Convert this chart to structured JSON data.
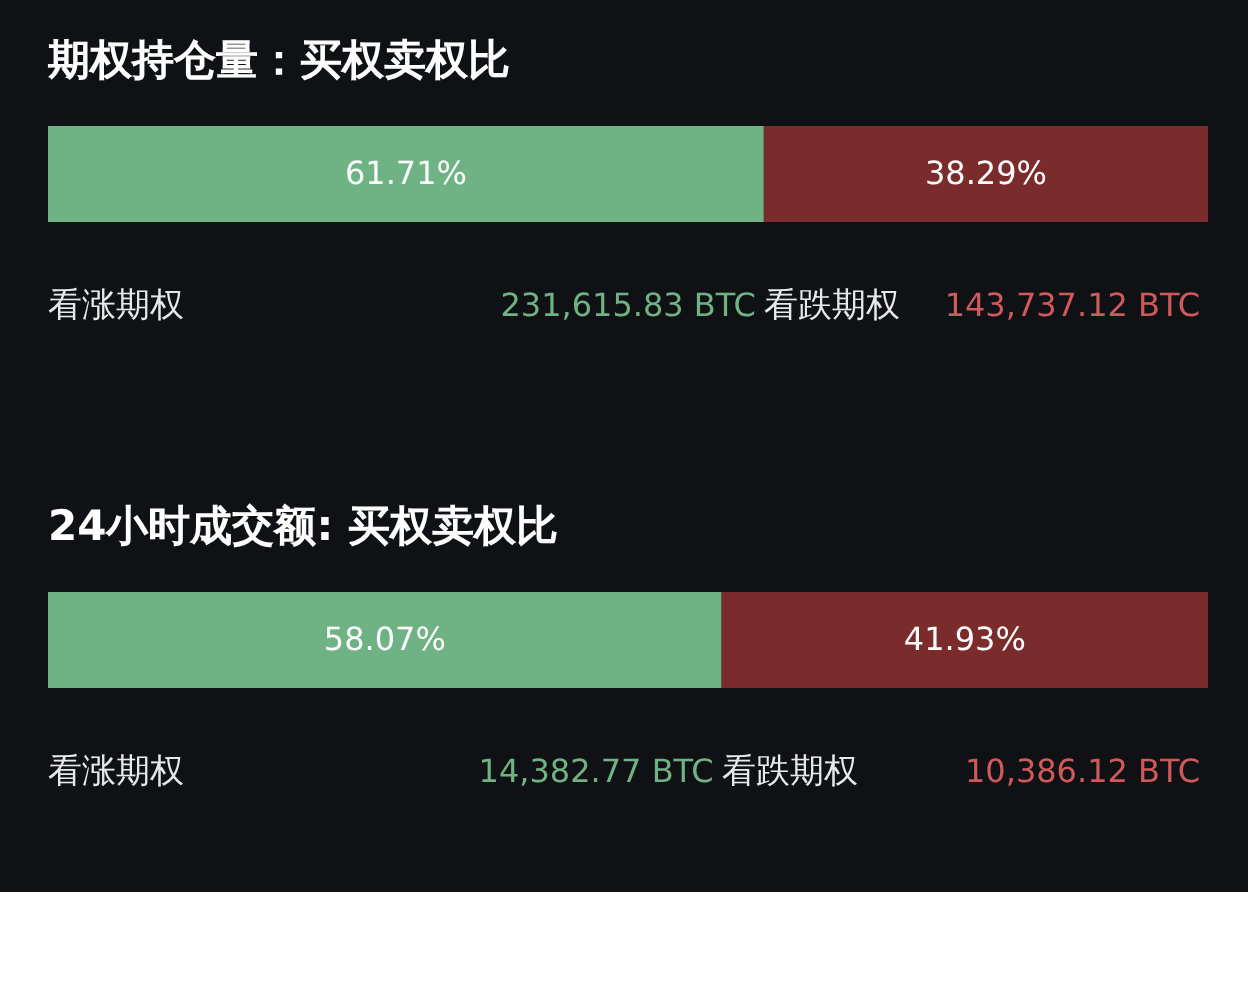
{
  "chart_data": [
    {
      "type": "bar",
      "title": "期权持仓量：买权卖权比",
      "orientation": "horizontal",
      "stacked": true,
      "categories": [
        null
      ],
      "xlim": [
        0,
        100
      ],
      "tick_labels": false,
      "series": [
        {
          "name": "看涨期权",
          "color": "#6fb283",
          "values": [
            61.71
          ],
          "value_labels": [
            "61.71%"
          ]
        },
        {
          "name": "看跌期权",
          "color": "#7a2c2c",
          "values": [
            38.29
          ],
          "value_labels": [
            "38.29%"
          ]
        }
      ],
      "annotations": [
        "231,615.83 BTC",
        "143,737.12 BTC"
      ]
    },
    {
      "type": "bar",
      "title": "24小时成交额: 买权卖权比",
      "orientation": "horizontal",
      "stacked": true,
      "categories": [
        null
      ],
      "xlim": [
        0,
        100
      ],
      "tick_labels": false,
      "series": [
        {
          "name": "看涨期权",
          "color": "#6fb283",
          "values": [
            58.07
          ],
          "value_labels": [
            "58.07%"
          ]
        },
        {
          "name": "看跌期权",
          "color": "#7a2c2c",
          "values": [
            41.93
          ],
          "value_labels": [
            "41.93%"
          ]
        }
      ],
      "annotations": [
        "14,382.77 BTC",
        "10,386.12 BTC"
      ]
    }
  ]
}
